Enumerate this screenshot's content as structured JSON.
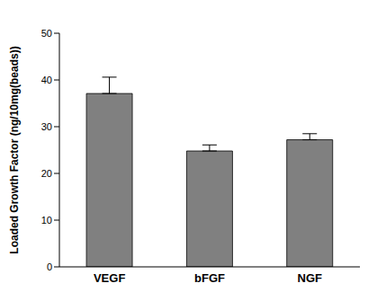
{
  "chart_data": {
    "type": "bar",
    "categories": [
      "VEGF",
      "bFGF",
      "NGF"
    ],
    "values": [
      37.1,
      24.8,
      27.2
    ],
    "errors": [
      3.5,
      1.3,
      1.3
    ],
    "color": "#808080",
    "ylabel": "Loaded Growth Factor (ng/10mg(beads))",
    "ylim": [
      0,
      50
    ],
    "yticks": [
      0,
      10,
      20,
      30,
      40,
      50
    ],
    "grid": false
  }
}
